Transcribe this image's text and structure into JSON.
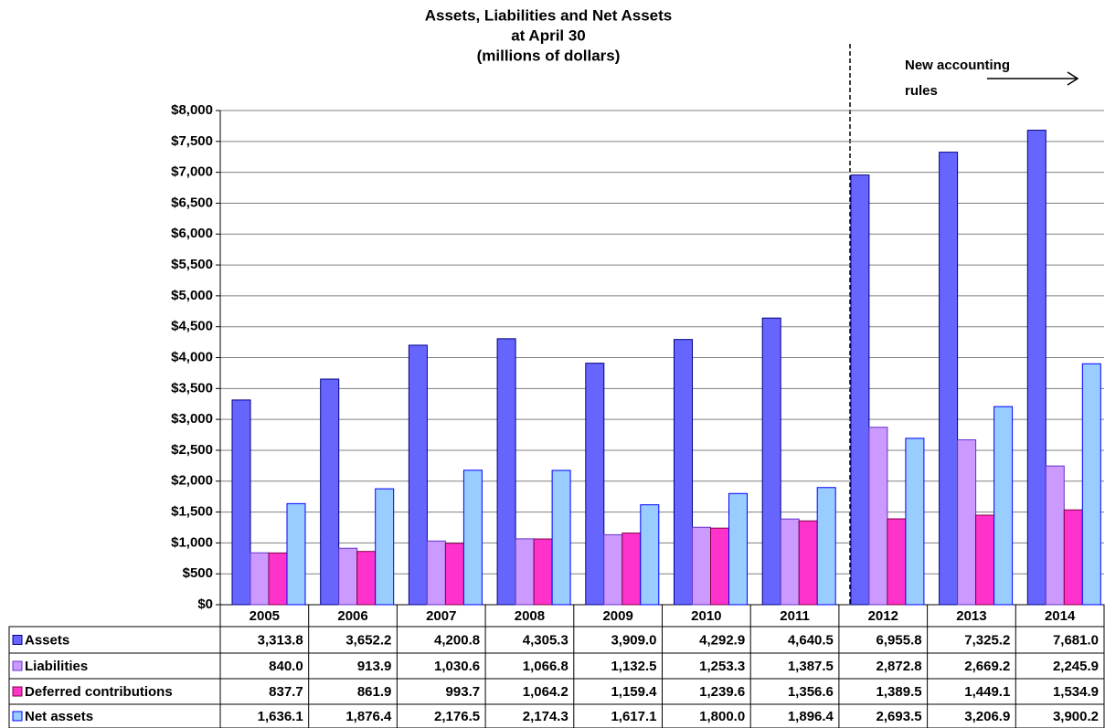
{
  "chart_data": {
    "type": "bar",
    "title_lines": [
      "Assets, Liabilities and Net Assets",
      "at April 30",
      "(millions of dollars)"
    ],
    "annotation_lines": [
      "New accounting",
      "rules"
    ],
    "categories": [
      "2005",
      "2006",
      "2007",
      "2008",
      "2009",
      "2010",
      "2011",
      "2012",
      "2013",
      "2014"
    ],
    "series": [
      {
        "name": "Assets",
        "color": "#6666ff",
        "stroke": "#000080",
        "values": [
          3313.8,
          3652.2,
          4200.8,
          4305.3,
          3909.0,
          4292.9,
          4640.5,
          6955.8,
          7325.2,
          7681.0
        ],
        "value_labels": [
          "3,313.8",
          "3,652.2",
          "4,200.8",
          "4,305.3",
          "3,909.0",
          "4,292.9",
          "4,640.5",
          "6,955.8",
          "7,325.2",
          "7,681.0"
        ]
      },
      {
        "name": "Liabilities",
        "color": "#cc99ff",
        "stroke": "#6633cc",
        "values": [
          840.0,
          913.9,
          1030.6,
          1066.8,
          1132.5,
          1253.3,
          1387.5,
          2872.8,
          2669.2,
          2245.9
        ],
        "value_labels": [
          "840.0",
          "913.9",
          "1,030.6",
          "1,066.8",
          "1,132.5",
          "1,253.3",
          "1,387.5",
          "2,872.8",
          "2,669.2",
          "2,245.9"
        ]
      },
      {
        "name": "Deferred contributions",
        "color": "#ff33cc",
        "stroke": "#800040",
        "values": [
          837.7,
          861.9,
          993.7,
          1064.2,
          1159.4,
          1239.6,
          1356.6,
          1389.5,
          1449.1,
          1534.9
        ],
        "value_labels": [
          "837.7",
          "861.9",
          "993.7",
          "1,064.2",
          "1,159.4",
          "1,239.6",
          "1,356.6",
          "1,389.5",
          "1,449.1",
          "1,534.9"
        ]
      },
      {
        "name": "Net assets",
        "color": "#99ccff",
        "stroke": "#0000ff",
        "values": [
          1636.1,
          1876.4,
          2176.5,
          2174.3,
          1617.1,
          1800.0,
          1896.4,
          2693.5,
          3206.9,
          3900.2
        ],
        "value_labels": [
          "1,636.1",
          "1,876.4",
          "2,176.5",
          "2,174.3",
          "1,617.1",
          "1,800.0",
          "1,896.4",
          "2,693.5",
          "3,206.9",
          "3,900.2"
        ]
      }
    ],
    "ylim": [
      0,
      8000
    ],
    "yticks": [
      {
        "value": 0,
        "label": "$0"
      },
      {
        "value": 500,
        "label": "$500"
      },
      {
        "value": 1000,
        "label": "$1,000"
      },
      {
        "value": 1500,
        "label": "$1,500"
      },
      {
        "value": 2000,
        "label": "$2,000"
      },
      {
        "value": 2500,
        "label": "$2,500"
      },
      {
        "value": 3000,
        "label": "$3,000"
      },
      {
        "value": 3500,
        "label": "$3,500"
      },
      {
        "value": 4000,
        "label": "$4,000"
      },
      {
        "value": 4500,
        "label": "$4,500"
      },
      {
        "value": 5000,
        "label": "$5,000"
      },
      {
        "value": 5500,
        "label": "$5,500"
      },
      {
        "value": 6000,
        "label": "$6,000"
      },
      {
        "value": 6500,
        "label": "$6,500"
      },
      {
        "value": 7000,
        "label": "$7,000"
      },
      {
        "value": 7500,
        "label": "$7,500"
      },
      {
        "value": 8000,
        "label": "$8,000"
      }
    ],
    "grid": true
  }
}
